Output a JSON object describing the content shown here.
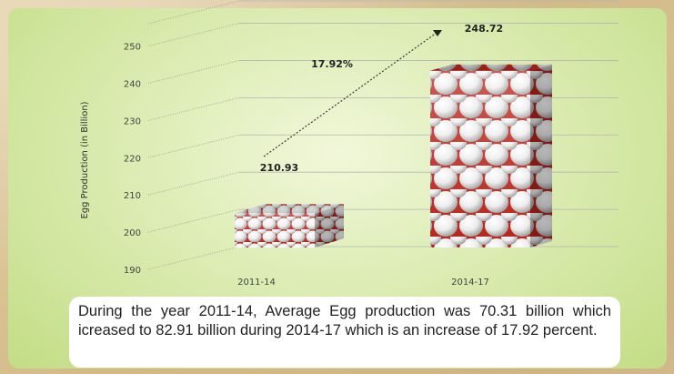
{
  "colors": {
    "panel_accent": "#c2dd85",
    "egg_white": "#f2f2f2",
    "egg_red": "#c0281e",
    "gridline": "#9a9a9a"
  },
  "caption": {
    "text": "During the year 2011-14, Average Egg production was 70.31 billion which icreased to 82.91 billion during 2014-17 which is an increase of 17.92 percent."
  },
  "chart_data": {
    "type": "bar",
    "categories": [
      "2011-14",
      "2014-17"
    ],
    "values": [
      210.93,
      248.72
    ],
    "data_labels": [
      "210.93",
      "248.72"
    ],
    "ylabel": "Egg Production (in Billion)",
    "yticks": [
      190,
      200,
      210,
      220,
      230,
      240,
      250
    ],
    "ylim": [
      190,
      256
    ],
    "annotation": "17.92%",
    "grid": true,
    "legend": "none"
  }
}
